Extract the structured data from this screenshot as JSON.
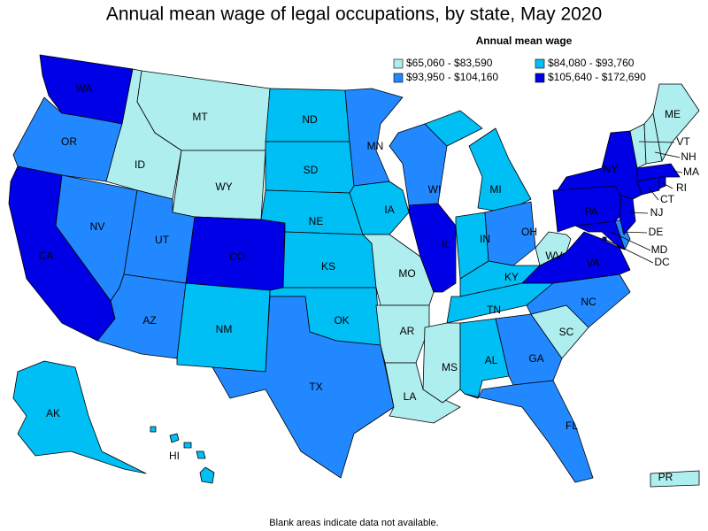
{
  "title": "Annual mean wage of legal occupations, by state, May 2020",
  "legend": {
    "title": "Annual mean wage",
    "items": [
      {
        "label": "$65,060 - $83,590",
        "color": "#aeeeee"
      },
      {
        "label": "$84,080 - $93,760",
        "color": "#00bff5"
      },
      {
        "label": "$93,950 - $104,160",
        "color": "#2288ff"
      },
      {
        "label": "$105,640 - $172,690",
        "color": "#0000e6"
      }
    ]
  },
  "states": [
    {
      "abbr": "WA",
      "range": 3
    },
    {
      "abbr": "OR",
      "range": 2
    },
    {
      "abbr": "CA",
      "range": 3
    },
    {
      "abbr": "NV",
      "range": 2
    },
    {
      "abbr": "ID",
      "range": 0
    },
    {
      "abbr": "MT",
      "range": 0
    },
    {
      "abbr": "WY",
      "range": 0
    },
    {
      "abbr": "UT",
      "range": 2
    },
    {
      "abbr": "CO",
      "range": 3
    },
    {
      "abbr": "AZ",
      "range": 2
    },
    {
      "abbr": "NM",
      "range": 1
    },
    {
      "abbr": "ND",
      "range": 1
    },
    {
      "abbr": "SD",
      "range": 1
    },
    {
      "abbr": "NE",
      "range": 1
    },
    {
      "abbr": "KS",
      "range": 1
    },
    {
      "abbr": "OK",
      "range": 1
    },
    {
      "abbr": "TX",
      "range": 2
    },
    {
      "abbr": "MN",
      "range": 2
    },
    {
      "abbr": "IA",
      "range": 1
    },
    {
      "abbr": "MO",
      "range": 0
    },
    {
      "abbr": "AR",
      "range": 0
    },
    {
      "abbr": "LA",
      "range": 0
    },
    {
      "abbr": "WI",
      "range": 2
    },
    {
      "abbr": "IL",
      "range": 3
    },
    {
      "abbr": "MI",
      "range": 1
    },
    {
      "abbr": "IN",
      "range": 1
    },
    {
      "abbr": "OH",
      "range": 2
    },
    {
      "abbr": "KY",
      "range": 1
    },
    {
      "abbr": "TN",
      "range": 1
    },
    {
      "abbr": "MS",
      "range": 0
    },
    {
      "abbr": "AL",
      "range": 1
    },
    {
      "abbr": "GA",
      "range": 2
    },
    {
      "abbr": "FL",
      "range": 2
    },
    {
      "abbr": "SC",
      "range": 0
    },
    {
      "abbr": "NC",
      "range": 2
    },
    {
      "abbr": "VA",
      "range": 3
    },
    {
      "abbr": "WV",
      "range": 0
    },
    {
      "abbr": "MD",
      "range": 3
    },
    {
      "abbr": "DE",
      "range": 2
    },
    {
      "abbr": "PA",
      "range": 3
    },
    {
      "abbr": "NJ",
      "range": 3
    },
    {
      "abbr": "NY",
      "range": 3
    },
    {
      "abbr": "CT",
      "range": 3
    },
    {
      "abbr": "RI",
      "range": 3
    },
    {
      "abbr": "MA",
      "range": 3
    },
    {
      "abbr": "VT",
      "range": 0
    },
    {
      "abbr": "NH",
      "range": 0
    },
    {
      "abbr": "ME",
      "range": 0
    },
    {
      "abbr": "DC",
      "range": 3
    },
    {
      "abbr": "AK",
      "range": 1
    },
    {
      "abbr": "HI",
      "range": 1
    },
    {
      "abbr": "PR",
      "range": 0
    }
  ],
  "footnote": "Blank areas indicate data not available."
}
